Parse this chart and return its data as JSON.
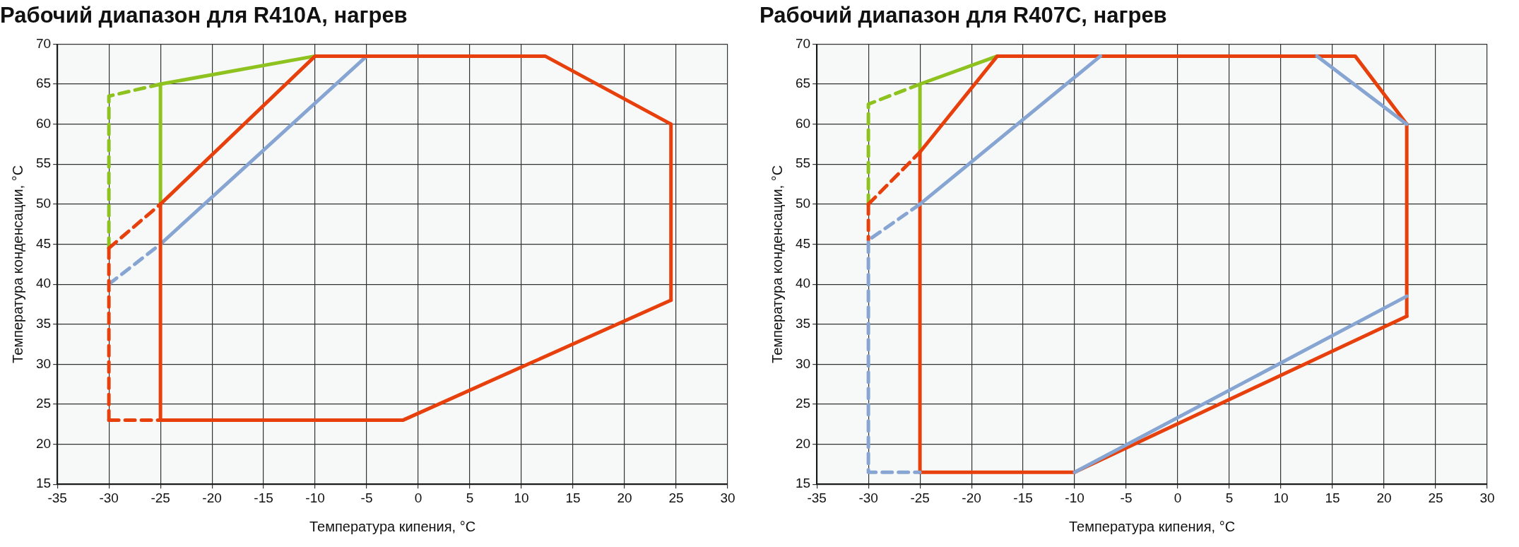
{
  "chart_data": [
    {
      "type": "line",
      "title": "Рабочий диапазон для R410A, нагрев",
      "xlabel": "Температура кипения, °C",
      "ylabel": "Температура конденсации, °C",
      "xlim": [
        -35,
        30
      ],
      "ylim": [
        15,
        70
      ],
      "xticks": [
        -35,
        -30,
        -25,
        -20,
        -15,
        -10,
        -5,
        0,
        5,
        10,
        15,
        20,
        25,
        30
      ],
      "yticks": [
        15,
        20,
        25,
        30,
        35,
        40,
        45,
        50,
        55,
        60,
        65,
        70
      ],
      "grid": true,
      "legend": false,
      "marker": "none",
      "series": [
        {
          "color": "#e8400c",
          "line_style": "solid",
          "x": [
            -25,
            -25
          ],
          "values": [
            23,
            50
          ]
        },
        {
          "color": "#e8400c",
          "line_style": "solid",
          "x": [
            -25,
            -10,
            12.3,
            24.5
          ],
          "values": [
            50,
            68.5,
            68.5,
            60
          ]
        },
        {
          "color": "#e8400c",
          "line_style": "solid",
          "x": [
            24.5,
            24.5
          ],
          "values": [
            60,
            38
          ]
        },
        {
          "color": "#e8400c",
          "line_style": "solid",
          "x": [
            -25,
            -1.5,
            24.5
          ],
          "values": [
            23,
            23,
            38
          ]
        },
        {
          "color": "#e8400c",
          "line_style": "dashed",
          "x": [
            -30,
            -25
          ],
          "values": [
            44.5,
            50
          ]
        },
        {
          "color": "#e8400c",
          "line_style": "dashed",
          "x": [
            -30,
            -30
          ],
          "values": [
            44.5,
            23
          ]
        },
        {
          "color": "#e8400c",
          "line_style": "dashed",
          "x": [
            -30,
            -25
          ],
          "values": [
            23,
            23
          ]
        },
        {
          "color": "#8dc21f",
          "line_style": "solid",
          "x": [
            -25,
            -25,
            -10
          ],
          "values": [
            50,
            65,
            68.5
          ]
        },
        {
          "color": "#8dc21f",
          "line_style": "dashed",
          "x": [
            -25,
            -30,
            -30
          ],
          "values": [
            65,
            63.5,
            44.5
          ]
        },
        {
          "color": "#87a5d2",
          "line_style": "solid",
          "x": [
            -25,
            -5
          ],
          "values": [
            45,
            68.5
          ]
        },
        {
          "color": "#87a5d2",
          "line_style": "dashed",
          "x": [
            -30,
            -25
          ],
          "values": [
            40,
            45
          ]
        }
      ]
    },
    {
      "type": "line",
      "title": "Рабочий диапазон для R407C, нагрев",
      "xlabel": "Температура кипения, °C",
      "ylabel": "Температура конденсации, °C",
      "xlim": [
        -35,
        30
      ],
      "ylim": [
        15,
        70
      ],
      "xticks": [
        -35,
        -30,
        -25,
        -20,
        -15,
        -10,
        -5,
        0,
        5,
        10,
        15,
        20,
        25,
        30
      ],
      "yticks": [
        15,
        20,
        25,
        30,
        35,
        40,
        45,
        50,
        55,
        60,
        65,
        70
      ],
      "grid": true,
      "legend": false,
      "marker": "none",
      "series": [
        {
          "color": "#87a5d2",
          "line_style": "solid",
          "x": [
            -25,
            -7.5
          ],
          "values": [
            50,
            68.5
          ]
        },
        {
          "color": "#87a5d2",
          "line_style": "solid",
          "x": [
            13.5,
            22.2
          ],
          "values": [
            68.5,
            60
          ]
        },
        {
          "color": "#87a5d2",
          "line_style": "solid",
          "x": [
            -10,
            22.2
          ],
          "values": [
            16.5,
            38.5
          ]
        },
        {
          "color": "#87a5d2",
          "line_style": "dashed",
          "x": [
            -25,
            -30,
            -30,
            -25
          ],
          "values": [
            50,
            45.5,
            16.5,
            16.5
          ]
        },
        {
          "color": "#e8400c",
          "line_style": "solid",
          "x": [
            -25,
            -25
          ],
          "values": [
            16.5,
            56.5
          ]
        },
        {
          "color": "#e8400c",
          "line_style": "solid",
          "x": [
            -25,
            -17.5,
            17.2,
            22.2
          ],
          "values": [
            56.5,
            68.5,
            68.5,
            60
          ]
        },
        {
          "color": "#e8400c",
          "line_style": "solid",
          "x": [
            22.2,
            22.2
          ],
          "values": [
            60,
            36
          ]
        },
        {
          "color": "#e8400c",
          "line_style": "solid",
          "x": [
            -25,
            -10,
            22.2
          ],
          "values": [
            16.5,
            16.5,
            36
          ]
        },
        {
          "color": "#e8400c",
          "line_style": "dashed",
          "x": [
            -30,
            -25
          ],
          "values": [
            50,
            56.5
          ]
        },
        {
          "color": "#e8400c",
          "line_style": "dashed",
          "x": [
            -30,
            -30
          ],
          "values": [
            50,
            45.5
          ]
        },
        {
          "color": "#8dc21f",
          "line_style": "solid",
          "x": [
            -25,
            -25,
            -17.5
          ],
          "values": [
            56.5,
            65,
            68.5
          ]
        },
        {
          "color": "#8dc21f",
          "line_style": "dashed",
          "x": [
            -25,
            -30,
            -30
          ],
          "values": [
            65,
            62.5,
            50
          ]
        }
      ]
    }
  ]
}
